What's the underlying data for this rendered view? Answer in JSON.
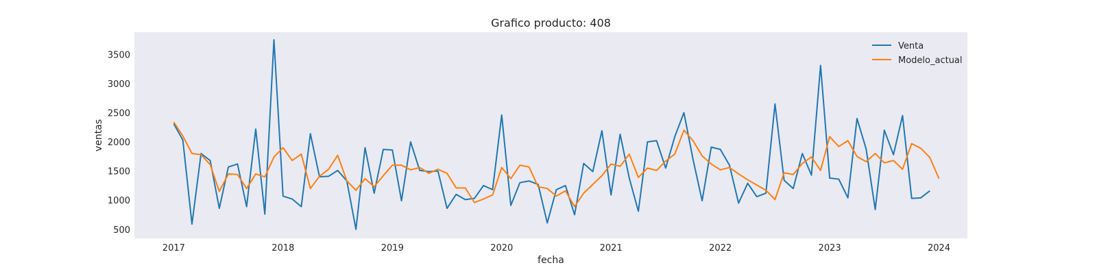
{
  "chart_data": {
    "type": "line",
    "title": "Grafico producto: 408",
    "xlabel": "fecha",
    "ylabel": "ventas",
    "xlim": [
      2016.64,
      2024.26
    ],
    "ylim": [
      345,
      3880
    ],
    "xticks": [
      2017,
      2018,
      2019,
      2020,
      2021,
      2022,
      2023,
      2024
    ],
    "xtick_labels": [
      "2017",
      "2018",
      "2019",
      "2020",
      "2021",
      "2022",
      "2023",
      "2024"
    ],
    "yticks": [
      500,
      1000,
      1500,
      2000,
      2500,
      3000,
      3500
    ],
    "ytick_labels": [
      "500",
      "1000",
      "1500",
      "2000",
      "2500",
      "3000",
      "3500"
    ],
    "grid": false,
    "legend_position": "top-right",
    "background_color": "#eaeaf2",
    "x_start": "2017-01",
    "x_frequency": "monthly",
    "series": [
      {
        "name": "Venta",
        "color": "#1f77b4",
        "values": [
          2310,
          2030,
          590,
          1800,
          1680,
          860,
          1570,
          1620,
          890,
          2220,
          760,
          3750,
          1070,
          1020,
          890,
          2140,
          1400,
          1410,
          1510,
          1330,
          500,
          1900,
          1120,
          1870,
          1860,
          990,
          2000,
          1510,
          1490,
          1500,
          860,
          1100,
          1010,
          1030,
          1250,
          1180,
          2460,
          910,
          1300,
          1330,
          1270,
          610,
          1180,
          1250,
          750,
          1630,
          1490,
          2190,
          1090,
          2130,
          1380,
          810,
          2000,
          2020,
          1550,
          2090,
          2500,
          1700,
          990,
          1910,
          1870,
          1600,
          950,
          1290,
          1060,
          1120,
          2650,
          1340,
          1200,
          1800,
          1430,
          3310,
          1380,
          1360,
          1040,
          2400,
          1880,
          840,
          2200,
          1780,
          2450,
          1030,
          1040,
          1160
        ]
      },
      {
        "name": "Modelo_actual",
        "color": "#ff7f0e",
        "values": [
          2340,
          2100,
          1800,
          1780,
          1610,
          1150,
          1450,
          1440,
          1200,
          1450,
          1400,
          1740,
          1900,
          1680,
          1790,
          1200,
          1410,
          1530,
          1770,
          1330,
          1170,
          1370,
          1230,
          1420,
          1600,
          1600,
          1520,
          1560,
          1460,
          1530,
          1460,
          1210,
          1210,
          960,
          1020,
          1090,
          1560,
          1370,
          1600,
          1570,
          1230,
          1200,
          1070,
          1160,
          890,
          1120,
          1270,
          1420,
          1620,
          1580,
          1790,
          1390,
          1550,
          1510,
          1670,
          1790,
          2200,
          2020,
          1760,
          1620,
          1520,
          1560,
          1450,
          1350,
          1260,
          1170,
          1010,
          1470,
          1440,
          1630,
          1740,
          1510,
          2090,
          1920,
          2020,
          1750,
          1660,
          1800,
          1640,
          1680,
          1530,
          1970,
          1890,
          1730,
          1370
        ]
      }
    ]
  }
}
